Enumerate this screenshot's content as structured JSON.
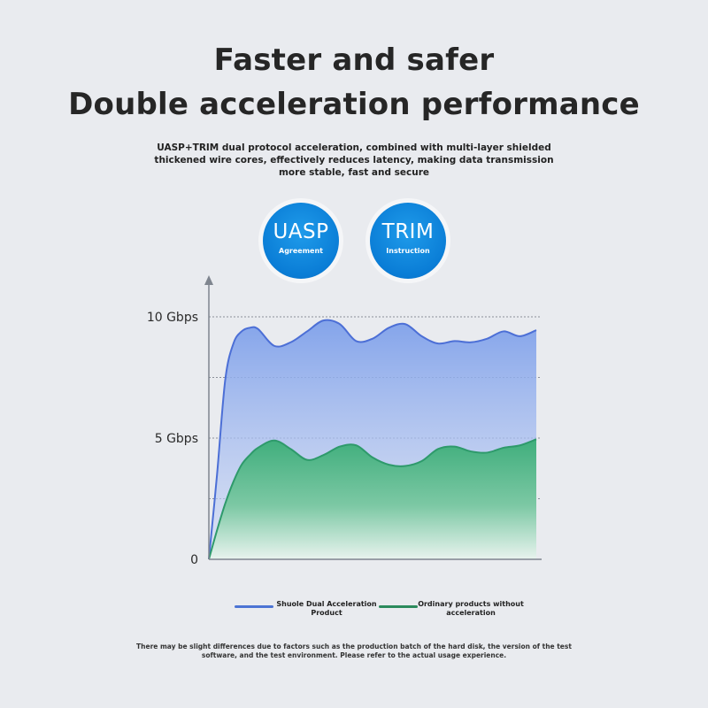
{
  "header": {
    "title_line1": "Faster and safer",
    "title_line2": "Double acceleration performance",
    "description": "UASP+TRIM dual protocol acceleration, combined with multi-layer shielded thickened wire cores, effectively reduces latency, making data transmission more stable, fast and secure"
  },
  "badges": [
    {
      "label": "UASP",
      "sub": "Agreement"
    },
    {
      "label": "TRIM",
      "sub": "Instruction"
    }
  ],
  "chart_data": {
    "type": "area",
    "y_unit": "Gbps",
    "ylim": [
      0,
      10
    ],
    "y_ticks": [
      {
        "value": 0,
        "label": "0"
      },
      {
        "value": 5,
        "label": "5 Gbps"
      },
      {
        "value": 10,
        "label": "10 Gbps"
      }
    ],
    "gridlines": [
      2.5,
      5,
      7.5,
      10
    ],
    "x": [
      0,
      0.25,
      0.5,
      0.75,
      1,
      1.25,
      1.5,
      2,
      2.5,
      3,
      3.5,
      4,
      4.5,
      5,
      5.5,
      6,
      6.5,
      7,
      7.5,
      8,
      8.5,
      9,
      9.5,
      10
    ],
    "series": [
      {
        "name": "Shuole Dual Acceleration Product",
        "color": "#4c6fd6",
        "values": [
          0,
          3.5,
          7.4,
          8.9,
          9.4,
          9.55,
          9.5,
          8.8,
          8.95,
          9.4,
          9.85,
          9.7,
          9.0,
          9.1,
          9.55,
          9.7,
          9.2,
          8.9,
          9.0,
          8.95,
          9.1,
          9.4,
          9.2,
          9.45
        ]
      },
      {
        "name": "Ordinary products without acceleration",
        "color": "#2e9a6b",
        "values": [
          0,
          1.2,
          2.3,
          3.2,
          3.9,
          4.3,
          4.6,
          4.9,
          4.55,
          4.1,
          4.3,
          4.65,
          4.7,
          4.2,
          3.9,
          3.85,
          4.05,
          4.55,
          4.65,
          4.45,
          4.4,
          4.6,
          4.7,
          4.95
        ]
      }
    ]
  },
  "legend": {
    "item1": "Shuole Dual Acceleration Product",
    "item2": "Ordinary products without acceleration"
  },
  "footnote": "There may be slight differences due to factors such as the production batch of the hard disk, the version of the test software, and the test environment. Please refer to the actual usage experience."
}
